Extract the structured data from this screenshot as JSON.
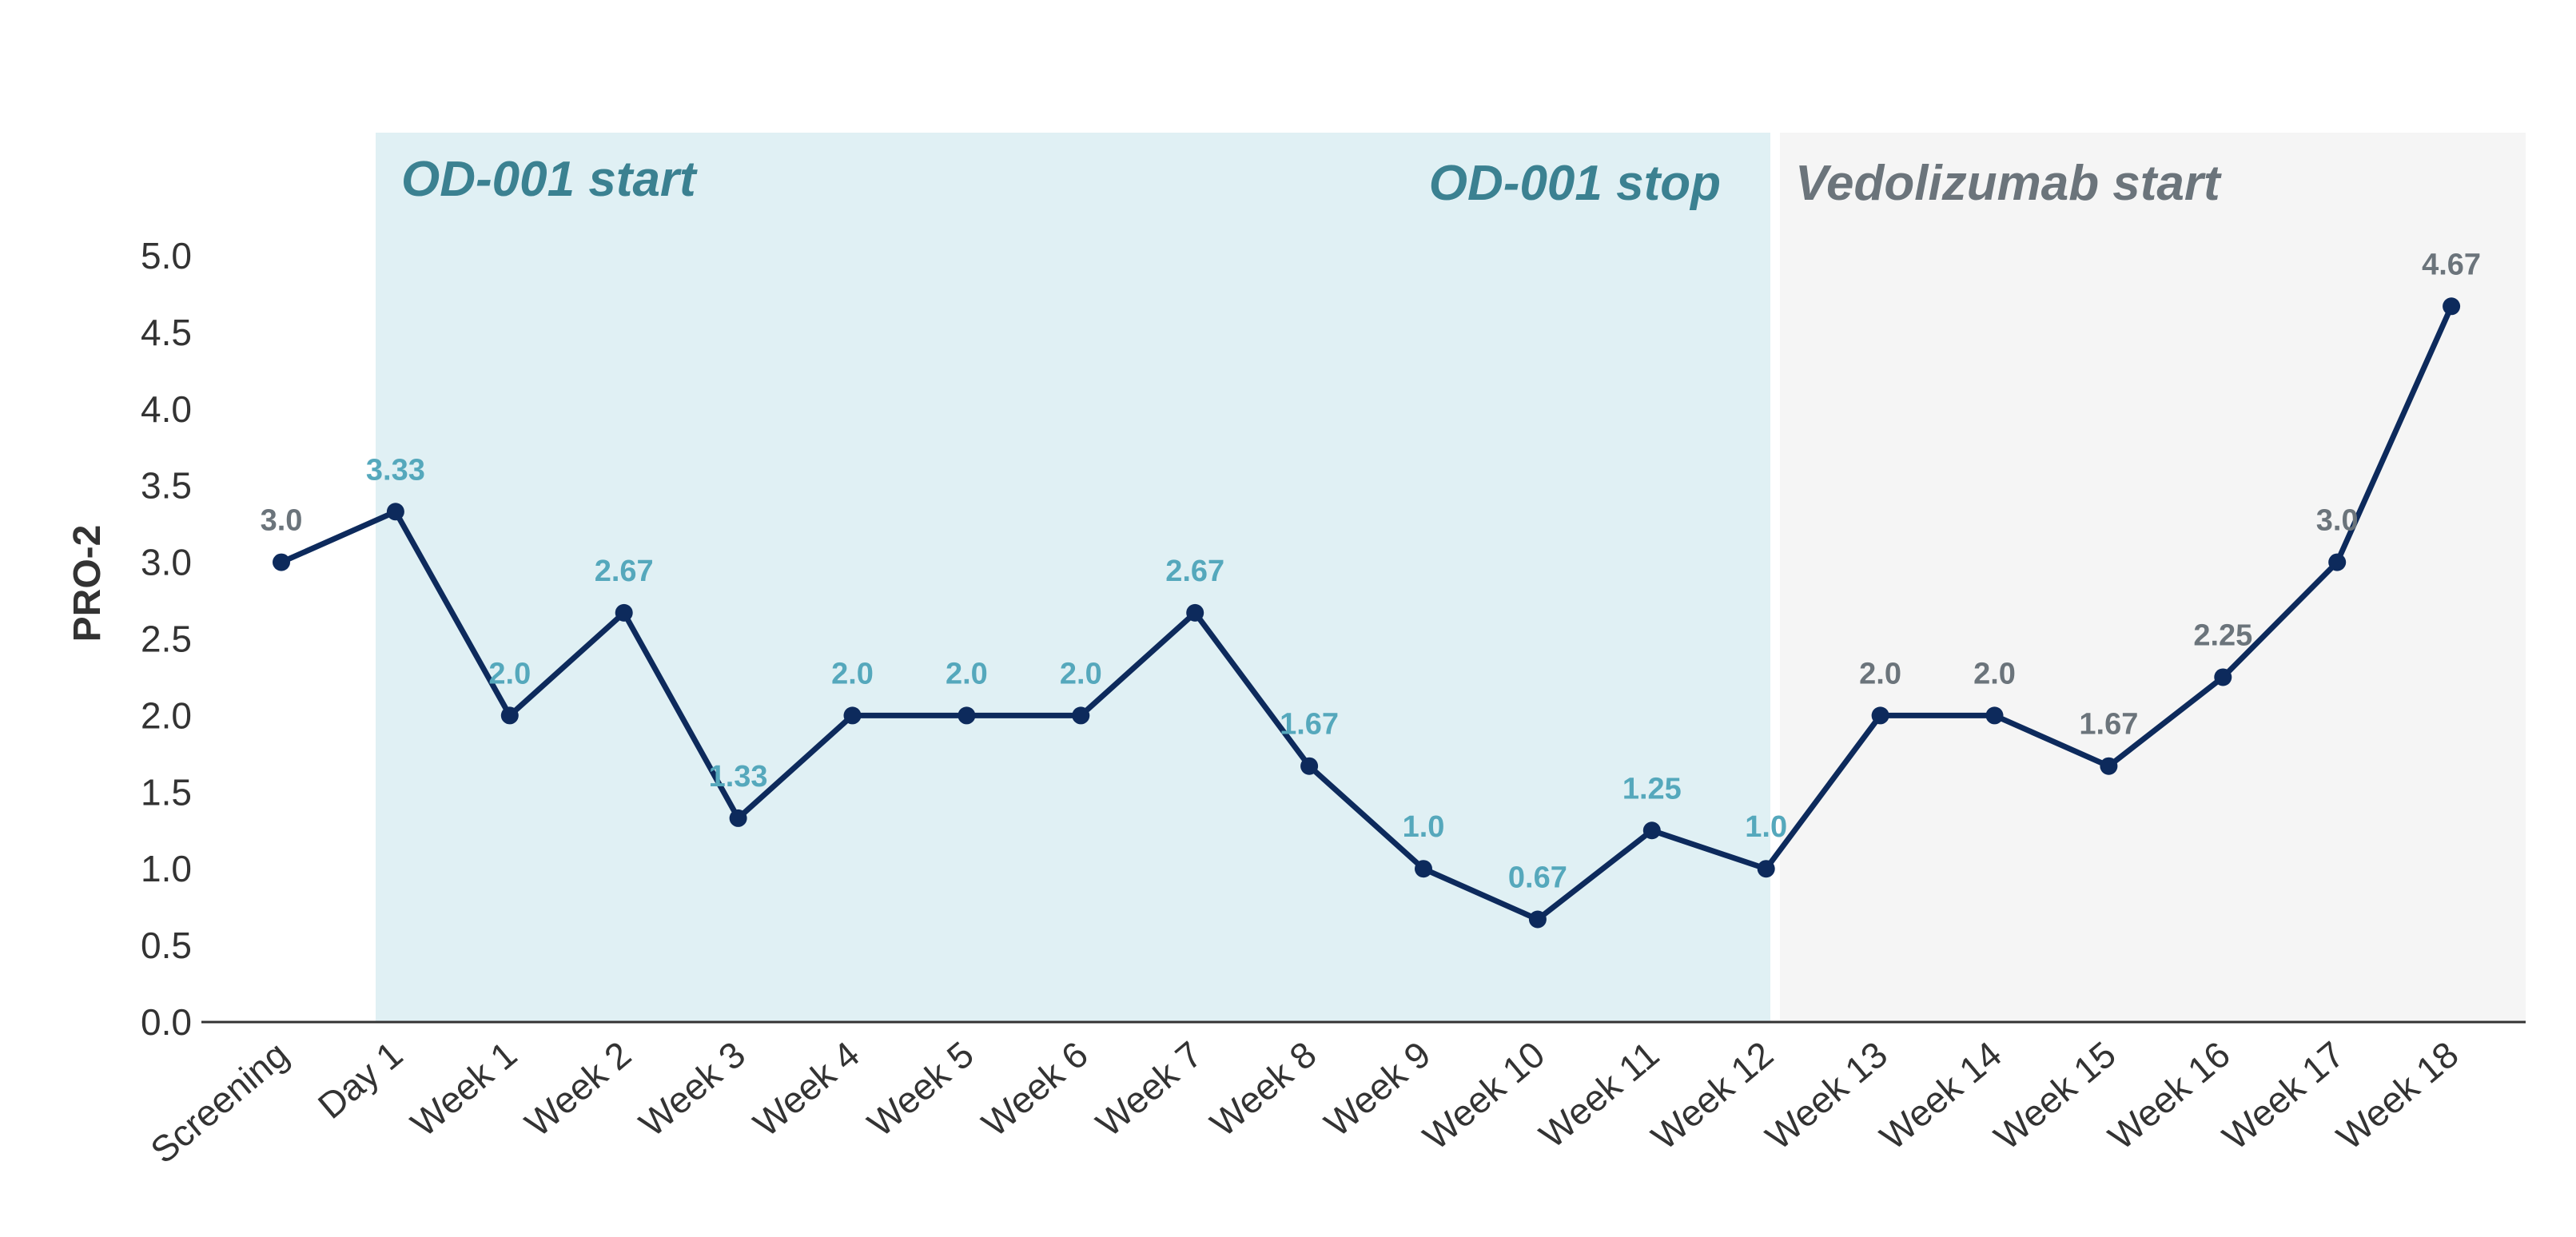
{
  "chart_data": {
    "type": "line",
    "xlabel": "",
    "ylabel": "PRO-2",
    "ylim": [
      0,
      5.0
    ],
    "yticks": [
      "0.0",
      "0.5",
      "1.0",
      "1.5",
      "2.0",
      "2.5",
      "3.0",
      "3.5",
      "4.0",
      "4.5",
      "5.0"
    ],
    "categories": [
      "Screening",
      "Day 1",
      "Week 1",
      "Week 2",
      "Week 3",
      "Week 4",
      "Week 5",
      "Week 6",
      "Week 7",
      "Week 8",
      "Week 9",
      "Week 10",
      "Week 11",
      "Week 12",
      "Week 13",
      "Week 14",
      "Week 15",
      "Week 16",
      "Week 17",
      "Week 18"
    ],
    "series": [
      {
        "values": [
          3.0,
          3.33,
          2.0,
          2.67,
          1.33,
          2.0,
          2.0,
          2.0,
          2.67,
          1.67,
          1.0,
          0.67,
          1.25,
          1.0,
          2.0,
          2.0,
          1.67,
          2.25,
          3.0,
          4.67
        ],
        "labels": [
          "3.0",
          "3.33",
          "2.0",
          "2.67",
          "1.33",
          "2.0",
          "2.0",
          "2.0",
          "2.67",
          "1.67",
          "1.0",
          "0.67",
          "1.25",
          "1.0",
          "2.0",
          "2.0",
          "1.67",
          "2.25",
          "3.0",
          "4.67"
        ],
        "color": "#0d2a5c"
      }
    ],
    "regions": [
      {
        "label": "OD-001 start",
        "from": "Day 1",
        "to": "Week 12",
        "fill": "#e0f0f4",
        "text_color": "#3b8191"
      },
      {
        "label": "OD-001 stop",
        "from": "Week 12",
        "to": "Week 12",
        "text_color": "#3b8191"
      },
      {
        "label": "Vedolizumab start",
        "from": "Week 12",
        "to": "Week 18",
        "fill": "#f5f5f5",
        "text_color": "#6b747b"
      }
    ],
    "label_colors": {
      "treatment": "#55a8bc",
      "other": "#6b747b"
    },
    "grid": false
  }
}
